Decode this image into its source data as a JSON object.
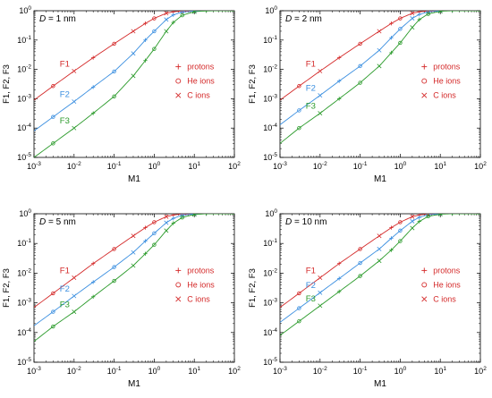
{
  "colors": {
    "F1": "#d42a2a",
    "F2": "#3b8fe0",
    "F3": "#2a9a2a",
    "legend_text": "#d42a2a",
    "axis": "#000000"
  },
  "chart_data": [
    {
      "type": "line",
      "panel_label": "D = 1 nm",
      "panel_var": "D",
      "panel_value": "= 1 nm",
      "xlabel": "M1",
      "ylabel": "F1, F2, F3",
      "x_scale": "log",
      "y_scale": "log",
      "xlim": [
        0.001,
        100
      ],
      "ylim": [
        1e-05,
        1
      ],
      "x_ticks": [
        "10-3",
        "10-2",
        "10-1",
        "100",
        "101",
        "102"
      ],
      "y_ticks": [
        "10-5",
        "10-4",
        "10-3",
        "10-2",
        "10-1",
        "100"
      ],
      "legend": [
        "protons",
        "He ions",
        "C ions"
      ],
      "legend_placement": "right-middle",
      "series": [
        {
          "name": "F1",
          "x": [
            0.001,
            0.003,
            0.01,
            0.03,
            0.1,
            0.3,
            0.6,
            1,
            2,
            3,
            5,
            10,
            20,
            100
          ],
          "y": [
            0.0009,
            0.0027,
            0.0088,
            0.025,
            0.075,
            0.2,
            0.37,
            0.55,
            0.82,
            0.92,
            0.98,
            1.0,
            1.0,
            1.0
          ]
        },
        {
          "name": "F2",
          "x": [
            0.001,
            0.003,
            0.01,
            0.03,
            0.1,
            0.3,
            0.6,
            1,
            2,
            3,
            5,
            10,
            20,
            100
          ],
          "y": [
            8e-05,
            0.00024,
            0.0008,
            0.0025,
            0.0085,
            0.035,
            0.1,
            0.2,
            0.5,
            0.72,
            0.9,
            0.98,
            1.0,
            1.0
          ]
        },
        {
          "name": "F3",
          "x": [
            0.001,
            0.003,
            0.01,
            0.03,
            0.1,
            0.3,
            0.6,
            1,
            2,
            3,
            5,
            10,
            20,
            100
          ],
          "y": [
            1e-05,
            3e-05,
            0.0001,
            0.00032,
            0.0012,
            0.006,
            0.02,
            0.05,
            0.2,
            0.4,
            0.7,
            0.93,
            0.99,
            1.0
          ]
        }
      ],
      "inline_labels": [
        {
          "text": "F1",
          "series": "F1"
        },
        {
          "text": "F2",
          "series": "F2"
        },
        {
          "text": "F3",
          "series": "F3"
        }
      ]
    },
    {
      "type": "line",
      "panel_label": "D = 2 nm",
      "panel_var": "D",
      "panel_value": "= 2 nm",
      "xlabel": "M1",
      "ylabel": "F1, F2, F3",
      "x_scale": "log",
      "y_scale": "log",
      "xlim": [
        0.001,
        100
      ],
      "ylim": [
        1e-05,
        1
      ],
      "x_ticks": [
        "10-3",
        "10-2",
        "10-1",
        "100",
        "101",
        "102"
      ],
      "y_ticks": [
        "10-5",
        "10-4",
        "10-3",
        "10-2",
        "10-1",
        "100"
      ],
      "legend": [
        "protons",
        "He ions",
        "C ions"
      ],
      "legend_placement": "right-middle",
      "series": [
        {
          "name": "F1",
          "x": [
            0.001,
            0.003,
            0.01,
            0.03,
            0.1,
            0.3,
            0.6,
            1,
            2,
            3,
            5,
            10,
            20,
            100
          ],
          "y": [
            0.0009,
            0.0027,
            0.0088,
            0.025,
            0.075,
            0.2,
            0.37,
            0.55,
            0.82,
            0.92,
            0.98,
            1.0,
            1.0,
            1.0
          ]
        },
        {
          "name": "F2",
          "x": [
            0.001,
            0.003,
            0.01,
            0.03,
            0.1,
            0.3,
            0.6,
            1,
            2,
            3,
            5,
            10,
            20,
            100
          ],
          "y": [
            0.00013,
            0.0004,
            0.0013,
            0.004,
            0.013,
            0.045,
            0.12,
            0.24,
            0.55,
            0.75,
            0.92,
            0.99,
            1.0,
            1.0
          ]
        },
        {
          "name": "F3",
          "x": [
            0.001,
            0.003,
            0.01,
            0.03,
            0.1,
            0.3,
            0.6,
            1,
            2,
            3,
            5,
            10,
            20,
            100
          ],
          "y": [
            3e-05,
            0.0001,
            0.00032,
            0.001,
            0.0035,
            0.013,
            0.037,
            0.08,
            0.27,
            0.5,
            0.78,
            0.96,
            1.0,
            1.0
          ]
        }
      ],
      "inline_labels": [
        {
          "text": "F1",
          "series": "F1"
        },
        {
          "text": "F2",
          "series": "F2"
        },
        {
          "text": "F3",
          "series": "F3"
        }
      ]
    },
    {
      "type": "line",
      "panel_label": "D = 5 nm",
      "panel_var": "D",
      "panel_value": "= 5 nm",
      "xlabel": "M1",
      "ylabel": "F1, F2, F3",
      "x_scale": "log",
      "y_scale": "log",
      "xlim": [
        0.001,
        100
      ],
      "ylim": [
        1e-05,
        1
      ],
      "x_ticks": [
        "10-3",
        "10-2",
        "10-1",
        "100",
        "101",
        "102"
      ],
      "y_ticks": [
        "10-5",
        "10-4",
        "10-3",
        "10-2",
        "10-1",
        "100"
      ],
      "legend": [
        "protons",
        "He ions",
        "C ions"
      ],
      "legend_placement": "right-middle",
      "series": [
        {
          "name": "F1",
          "x": [
            0.001,
            0.003,
            0.01,
            0.03,
            0.1,
            0.3,
            0.6,
            1,
            2,
            3,
            5,
            10,
            20,
            100
          ],
          "y": [
            0.0007,
            0.0021,
            0.007,
            0.021,
            0.065,
            0.18,
            0.34,
            0.52,
            0.8,
            0.91,
            0.98,
            1.0,
            1.0,
            1.0
          ]
        },
        {
          "name": "F2",
          "x": [
            0.001,
            0.003,
            0.01,
            0.03,
            0.1,
            0.3,
            0.6,
            1,
            2,
            3,
            5,
            10,
            20,
            100
          ],
          "y": [
            0.00017,
            0.0005,
            0.0017,
            0.005,
            0.016,
            0.05,
            0.12,
            0.22,
            0.5,
            0.7,
            0.9,
            0.99,
            1.0,
            1.0
          ]
        },
        {
          "name": "F3",
          "x": [
            0.001,
            0.003,
            0.01,
            0.03,
            0.1,
            0.3,
            0.6,
            1,
            2,
            3,
            5,
            10,
            20,
            100
          ],
          "y": [
            5e-05,
            0.00016,
            0.0005,
            0.0016,
            0.0055,
            0.018,
            0.045,
            0.09,
            0.27,
            0.48,
            0.75,
            0.95,
            1.0,
            1.0
          ]
        }
      ],
      "inline_labels": [
        {
          "text": "F1",
          "series": "F1"
        },
        {
          "text": "F2",
          "series": "F2"
        },
        {
          "text": "F3",
          "series": "F3"
        }
      ]
    },
    {
      "type": "line",
      "panel_label": "D = 10 nm",
      "panel_var": "D",
      "panel_value": "= 10 nm",
      "xlabel": "M1",
      "ylabel": "F1, F2, F3",
      "x_scale": "log",
      "y_scale": "log",
      "xlim": [
        0.001,
        100
      ],
      "ylim": [
        1e-05,
        1
      ],
      "x_ticks": [
        "10-3",
        "10-2",
        "10-1",
        "100",
        "101",
        "102"
      ],
      "y_ticks": [
        "10-5",
        "10-4",
        "10-3",
        "10-2",
        "10-1",
        "100"
      ],
      "legend": [
        "protons",
        "He ions",
        "C ions"
      ],
      "legend_placement": "right-middle",
      "series": [
        {
          "name": "F1",
          "x": [
            0.001,
            0.003,
            0.01,
            0.03,
            0.1,
            0.3,
            0.6,
            1,
            2,
            3,
            5,
            10,
            20,
            100
          ],
          "y": [
            0.0007,
            0.0021,
            0.007,
            0.021,
            0.065,
            0.18,
            0.34,
            0.52,
            0.8,
            0.91,
            0.98,
            1.0,
            1.0,
            1.0
          ]
        },
        {
          "name": "F2",
          "x": [
            0.001,
            0.003,
            0.01,
            0.03,
            0.1,
            0.3,
            0.6,
            1,
            2,
            3,
            5,
            10,
            20,
            100
          ],
          "y": [
            0.00022,
            0.00066,
            0.0022,
            0.0066,
            0.022,
            0.065,
            0.15,
            0.27,
            0.56,
            0.76,
            0.93,
            0.99,
            1.0,
            1.0
          ]
        },
        {
          "name": "F3",
          "x": [
            0.001,
            0.003,
            0.01,
            0.03,
            0.1,
            0.3,
            0.6,
            1,
            2,
            3,
            5,
            10,
            20,
            100
          ],
          "y": [
            8e-05,
            0.00024,
            0.0008,
            0.0024,
            0.008,
            0.026,
            0.06,
            0.12,
            0.33,
            0.55,
            0.82,
            0.97,
            1.0,
            1.0
          ]
        }
      ],
      "inline_labels": [
        {
          "text": "F1",
          "series": "F1"
        },
        {
          "text": "F2",
          "series": "F2"
        },
        {
          "text": "F3",
          "series": "F3"
        }
      ]
    }
  ]
}
